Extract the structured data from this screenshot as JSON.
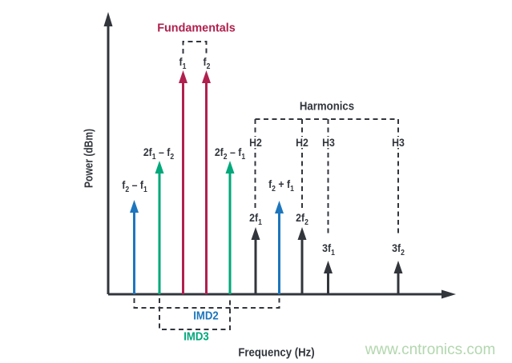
{
  "axes": {
    "y_label": "Power (dBm)",
    "x_label": "Frequency (Hz)"
  },
  "fundamentals": {
    "title": "Fundamentals",
    "lines": [
      {
        "label": "f_1"
      },
      {
        "label": "f_2"
      }
    ]
  },
  "harmonics": {
    "title": "Harmonics",
    "items": [
      {
        "tag": "H2",
        "label": "2f_1"
      },
      {
        "tag": "H2",
        "label": "2f_2"
      },
      {
        "tag": "H3",
        "label": "3f_1"
      },
      {
        "tag": "H3",
        "label": "3f_2"
      }
    ]
  },
  "imd2": {
    "title": "IMD2",
    "lines": [
      {
        "label": "f_2 – f_1"
      },
      {
        "label": "f_2 + f_1"
      }
    ]
  },
  "imd3": {
    "title": "IMD3",
    "lines": [
      {
        "label": "2f_1 – f_2"
      },
      {
        "label": "2f_2 – f_1"
      }
    ]
  },
  "watermark": "www.cntronics.com",
  "colors": {
    "fundamental_red": "#b0204e",
    "imd2_blue": "#1d76bd",
    "imd3_green": "#00a87a",
    "harmonic_black": "#32363c",
    "watermark_green": "#b2d7ae"
  }
}
